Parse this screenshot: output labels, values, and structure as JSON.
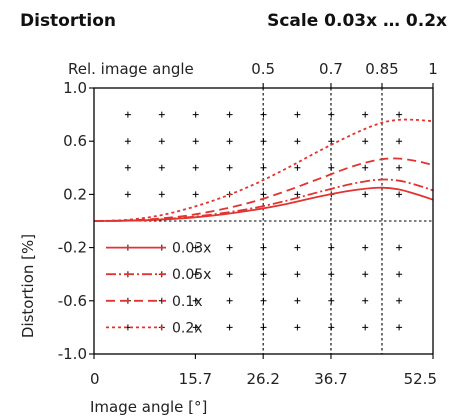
{
  "header": {
    "title": "Distortion",
    "scale": "Scale 0.03x … 0.2x"
  },
  "chart_data": {
    "type": "line",
    "xlabel": "Image angle [°]",
    "ylabel": "Distortion [%]",
    "xlim": [
      0,
      52.5
    ],
    "ylim": [
      -1.0,
      1.0
    ],
    "x_ticks": [
      "0",
      "15.7",
      "26.2",
      "36.7",
      "52.5"
    ],
    "x_tick_values": [
      0,
      15.7,
      26.2,
      36.7,
      52.5
    ],
    "y_ticks": [
      "1.0",
      "0.6",
      "0.2",
      "-0.2",
      "-0.6",
      "-1.0"
    ],
    "y_tick_values": [
      1.0,
      0.6,
      0.2,
      -0.2,
      -0.6,
      -1.0
    ],
    "top_axis": {
      "label": "Rel. image angle",
      "ticks": [
        "0.5",
        "0.7",
        "0.85",
        "1"
      ],
      "tick_positions_x": [
        26.2,
        36.7,
        44.6,
        52.5
      ]
    },
    "reference_lines_x": [
      26.2,
      36.7,
      44.6
    ],
    "reference_line_y": 0,
    "grid_markers": true,
    "grid_x": [
      5.25,
      10.5,
      15.75,
      21.0,
      26.25,
      31.5,
      36.75,
      42.0,
      47.25
    ],
    "grid_y": [
      0.8,
      0.6,
      0.4,
      0.2,
      -0.2,
      -0.4,
      -0.6,
      -0.8
    ],
    "legend_position": "lower-left",
    "color": "#e2332f",
    "series": [
      {
        "name": "0.03x",
        "dash": "solid",
        "x": [
          0,
          5,
          10,
          15,
          20,
          25,
          30,
          35,
          40,
          44,
          47,
          50,
          52.5
        ],
        "y": [
          0,
          0.002,
          0.01,
          0.025,
          0.05,
          0.085,
          0.13,
          0.185,
          0.23,
          0.25,
          0.24,
          0.2,
          0.16
        ]
      },
      {
        "name": "0.05x",
        "dash": "dashdot",
        "x": [
          0,
          5,
          10,
          15,
          20,
          25,
          30,
          35,
          40,
          44,
          47,
          50,
          52.5
        ],
        "y": [
          0,
          0.003,
          0.012,
          0.03,
          0.06,
          0.1,
          0.155,
          0.22,
          0.28,
          0.31,
          0.305,
          0.27,
          0.23
        ]
      },
      {
        "name": "0.1x",
        "dash": "dash",
        "x": [
          0,
          5,
          10,
          15,
          20,
          25,
          30,
          35,
          40,
          44,
          47,
          50,
          52.5
        ],
        "y": [
          0,
          0.004,
          0.018,
          0.045,
          0.09,
          0.15,
          0.23,
          0.32,
          0.41,
          0.46,
          0.47,
          0.45,
          0.42
        ]
      },
      {
        "name": "0.2x",
        "dash": "dot",
        "x": [
          0,
          5,
          10,
          15,
          20,
          25,
          30,
          35,
          40,
          44,
          47,
          50,
          52.5
        ],
        "y": [
          0,
          0.008,
          0.04,
          0.1,
          0.18,
          0.28,
          0.4,
          0.53,
          0.65,
          0.73,
          0.76,
          0.76,
          0.75
        ]
      }
    ]
  }
}
